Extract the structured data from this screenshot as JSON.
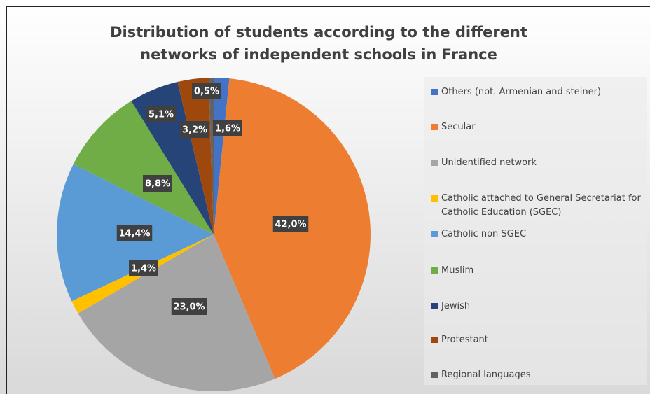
{
  "chart_data": {
    "type": "pie",
    "title": "Distribution of students according to the different networks of independent schools in France",
    "categories": [
      "Others (not. Armenian and steiner)",
      "Secular",
      "Unidentified network",
      "Catholic attached to General Secretariat for Catholic Education (SGEC)",
      "Catholic non SGEC",
      "Muslim",
      "Jewish",
      "Protestant",
      "Regional languages"
    ],
    "values": [
      1.6,
      42.0,
      23.0,
      1.4,
      14.4,
      8.8,
      5.1,
      3.2,
      0.5
    ],
    "value_labels": [
      "1,6%",
      "42,0%",
      "23,0%",
      "1,4%",
      "14,4%",
      "8,8%",
      "5,1%",
      "3,2%",
      "0,5%"
    ],
    "colors": [
      "#4472c4",
      "#ed7d31",
      "#a5a5a5",
      "#ffc000",
      "#5b9bd5",
      "#70ad47",
      "#264478",
      "#9e480e",
      "#636363"
    ],
    "legend": "right"
  }
}
